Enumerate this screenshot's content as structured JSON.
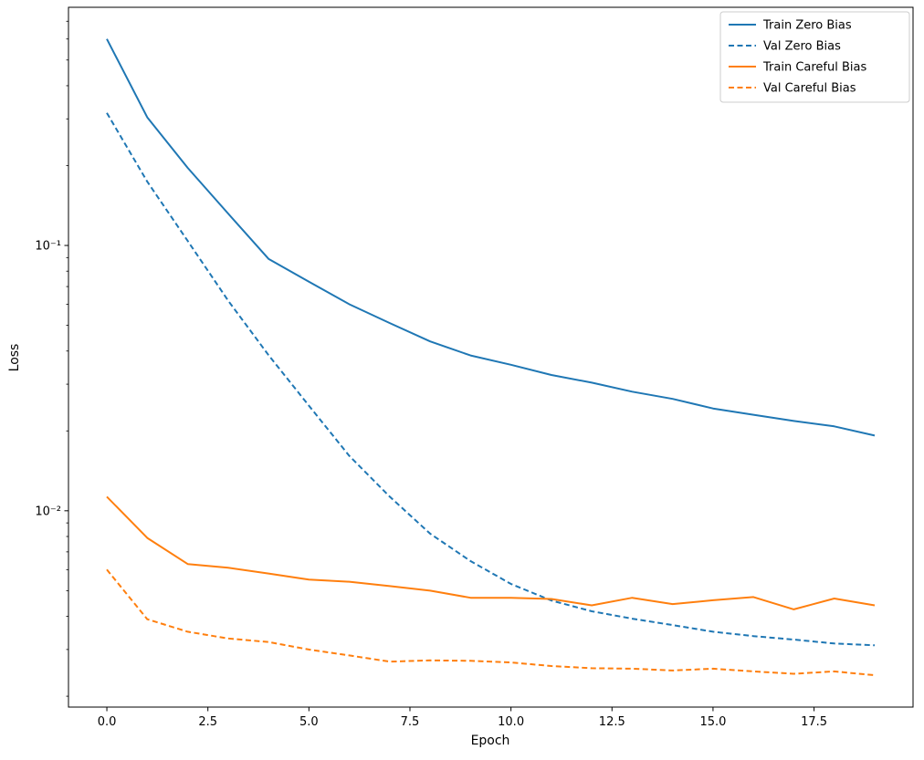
{
  "figure": {
    "background": "#ffffff",
    "spine_color": "#000000",
    "legend_border_color": "#cccccc"
  },
  "chart_data": {
    "type": "line",
    "title": "",
    "xlabel": "Epoch",
    "ylabel": "Loss",
    "yscale": "log",
    "grid": false,
    "xlim": [
      -0.95,
      19.95
    ],
    "ylim": [
      0.00182,
      0.79
    ],
    "x_ticks": [
      0,
      2.5,
      5,
      7.5,
      10,
      12.5,
      15,
      17.5
    ],
    "x_tick_labels": [
      "0.0",
      "2.5",
      "5.0",
      "7.5",
      "10.0",
      "12.5",
      "15.0",
      "17.5"
    ],
    "y_ticks": [
      0.01,
      0.1
    ],
    "y_tick_labels": [
      "10⁻²",
      "10⁻¹"
    ],
    "x": [
      0,
      1,
      2,
      3,
      4,
      5,
      6,
      7,
      8,
      9,
      10,
      11,
      12,
      13,
      14,
      15,
      16,
      17,
      18,
      19
    ],
    "series": [
      {
        "name": "Train Zero Bias",
        "color": "#1f77b4",
        "dash": "solid",
        "values": [
          0.6,
          0.304,
          0.196,
          0.132,
          0.089,
          0.073,
          0.06,
          0.051,
          0.0435,
          0.0385,
          0.0355,
          0.0325,
          0.0304,
          0.0281,
          0.0264,
          0.0243,
          0.023,
          0.0218,
          0.0208,
          0.0192
        ]
      },
      {
        "name": "Val Zero Bias",
        "color": "#1f77b4",
        "dash": "dashed",
        "values": [
          0.316,
          0.174,
          0.104,
          0.062,
          0.0386,
          0.0249,
          0.0161,
          0.0113,
          0.0082,
          0.00646,
          0.0053,
          0.00459,
          0.00418,
          0.00392,
          0.00371,
          0.0035,
          0.00337,
          0.00327,
          0.00316,
          0.00311
        ]
      },
      {
        "name": "Train Careful Bias",
        "color": "#ff7f0e",
        "dash": "solid",
        "values": [
          0.0113,
          0.0079,
          0.0063,
          0.0061,
          0.0058,
          0.0055,
          0.0054,
          0.0052,
          0.005,
          0.0047,
          0.0047,
          0.00465,
          0.0044,
          0.0047,
          0.00445,
          0.0046,
          0.00473,
          0.00425,
          0.00467,
          0.0044
        ]
      },
      {
        "name": "Val Careful Bias",
        "color": "#ff7f0e",
        "dash": "dashed",
        "values": [
          0.006,
          0.0039,
          0.0035,
          0.0033,
          0.0032,
          0.003,
          0.00285,
          0.0027,
          0.00273,
          0.00272,
          0.00268,
          0.0026,
          0.00255,
          0.00254,
          0.0025,
          0.00254,
          0.00248,
          0.00243,
          0.00248,
          0.0024
        ]
      }
    ],
    "legend": {
      "position": "upper right",
      "entries": [
        "Train Zero Bias",
        "Val Zero Bias",
        "Train Careful Bias",
        "Val Careful Bias"
      ]
    }
  }
}
